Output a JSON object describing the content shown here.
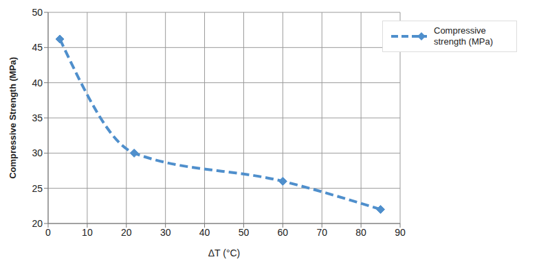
{
  "chart_data": {
    "type": "line",
    "x_label": "ΔT (°C)",
    "y_label": "Compressive Strength (MPa)",
    "x": [
      3,
      22,
      60,
      85
    ],
    "series": [
      {
        "name": "Compressive strength (MPa)",
        "color": "#4f8fcc",
        "values": [
          46.2,
          30,
          26,
          22
        ],
        "marker": "diamond",
        "line_style": "dashed"
      }
    ],
    "xlim": [
      0,
      90
    ],
    "xticks": [
      0,
      10,
      20,
      30,
      40,
      50,
      60,
      70,
      80,
      90
    ],
    "ylim": [
      20,
      50
    ],
    "yticks": [
      20,
      25,
      30,
      35,
      40,
      45,
      50
    ],
    "grid": true,
    "legend": "upper right"
  }
}
